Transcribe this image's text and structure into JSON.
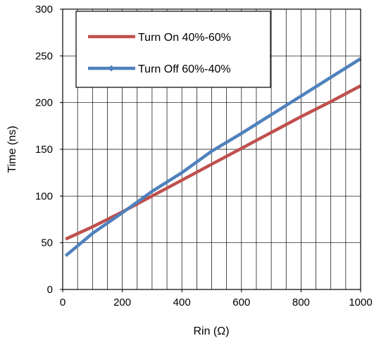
{
  "chart_data": {
    "type": "line",
    "xlabel": "Rin (Ω)",
    "ylabel": "Time (ns)",
    "xlim": [
      0,
      1000
    ],
    "ylim": [
      0,
      300
    ],
    "x_ticks": [
      0,
      200,
      400,
      600,
      800,
      1000
    ],
    "y_ticks": [
      0,
      50,
      100,
      150,
      200,
      250,
      300
    ],
    "x_gridlines": [
      0,
      50,
      100,
      150,
      200,
      250,
      300,
      350,
      400,
      450,
      500,
      550,
      600,
      650,
      700,
      750,
      800,
      850,
      900,
      950,
      1000
    ],
    "y_gridlines": [
      0,
      50,
      100,
      150,
      200,
      250,
      300
    ],
    "grid": true,
    "legend_position": "top-left",
    "series": [
      {
        "name": "Turn On 40%-60%",
        "color": "#c0504d",
        "marker": "none",
        "x": [
          10,
          100,
          200,
          300,
          400,
          500,
          600,
          700,
          800,
          900,
          1000
        ],
        "y": [
          54,
          67,
          83,
          100,
          117,
          134,
          151,
          168,
          185,
          201,
          218
        ]
      },
      {
        "name": "Turn Off 60%-40%",
        "color": "#4f81bd",
        "marker": "diamond",
        "x": [
          10,
          100,
          200,
          300,
          400,
          500,
          600,
          700,
          800,
          900,
          1000
        ],
        "y": [
          36,
          60,
          82,
          105,
          125,
          148,
          167,
          187,
          207,
          227,
          247
        ]
      }
    ]
  }
}
